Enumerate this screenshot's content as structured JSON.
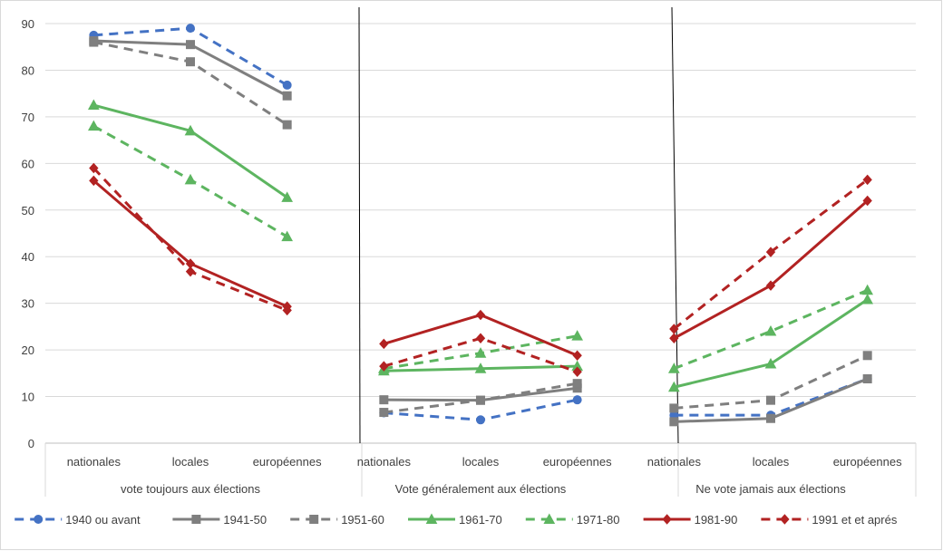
{
  "chart_data": {
    "type": "line",
    "groups": [
      {
        "label": "vote toujours aux élections",
        "categories": [
          "nationales",
          "locales",
          "européennes"
        ]
      },
      {
        "label": "Vote généralement aux élections",
        "categories": [
          "nationales",
          "locales",
          "européennes"
        ]
      },
      {
        "label": "Ne vote jamais aux élections",
        "categories": [
          "nationales",
          "locales",
          "européennes"
        ]
      }
    ],
    "ylim": [
      0,
      90
    ],
    "yticks": [
      "0",
      "10",
      "20",
      "30",
      "40",
      "50",
      "60",
      "70",
      "80",
      "90"
    ],
    "grid": true,
    "legend_position": "bottom",
    "series": [
      {
        "name": "1940 ou avant",
        "color": "#4472C4",
        "dashed": true,
        "marker": "circle",
        "values": [
          [
            87.5,
            89,
            76.8
          ],
          [
            6.5,
            5,
            9.3
          ],
          [
            6,
            6,
            13.8
          ]
        ]
      },
      {
        "name": "1941-50",
        "color": "#7F7F7F",
        "dashed": false,
        "marker": "square",
        "values": [
          [
            86.3,
            85.5,
            74.5
          ],
          [
            9.3,
            9.2,
            11.8
          ],
          [
            4.6,
            5.3,
            13.8
          ]
        ]
      },
      {
        "name": "1951-60",
        "color": "#7F7F7F",
        "dashed": true,
        "marker": "square",
        "values": [
          [
            86,
            81.8,
            68.3
          ],
          [
            6.6,
            9.2,
            12.8
          ],
          [
            7.5,
            9.2,
            18.8
          ]
        ]
      },
      {
        "name": "1961-70",
        "color": "#5DB560",
        "dashed": false,
        "marker": "triangle",
        "values": [
          [
            72.5,
            67,
            52.7
          ],
          [
            15.5,
            16,
            16.5
          ],
          [
            12,
            17,
            30.8
          ]
        ]
      },
      {
        "name": "1971-80",
        "color": "#5DB560",
        "dashed": true,
        "marker": "triangle",
        "values": [
          [
            68,
            56.5,
            44.3
          ],
          [
            16,
            19.3,
            23
          ],
          [
            16,
            24,
            32.8
          ]
        ]
      },
      {
        "name": "1981-90",
        "color": "#B22222",
        "dashed": false,
        "marker": "diamond",
        "values": [
          [
            56.3,
            38.5,
            29.3
          ],
          [
            21.3,
            27.5,
            18.8
          ],
          [
            22.5,
            33.8,
            52
          ]
        ]
      },
      {
        "name": "1991 et et aprés",
        "color": "#B22222",
        "dashed": true,
        "marker": "diamond",
        "values": [
          [
            59,
            36.8,
            28.5
          ],
          [
            16.5,
            22.5,
            15.3
          ],
          [
            24.5,
            41,
            56.5
          ]
        ]
      }
    ]
  }
}
